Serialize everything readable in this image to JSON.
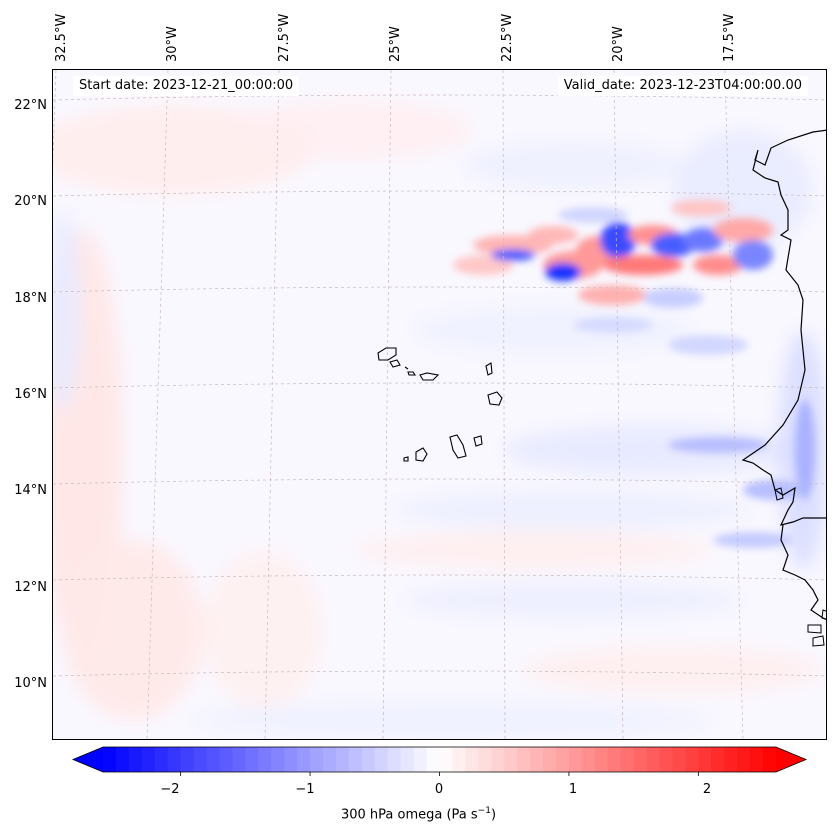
{
  "header": {
    "start_date": "Start date: 2023-12-21_00:00:00",
    "valid_date": "Valid_date: 2023-12-23T04:00:00.00"
  },
  "axes": {
    "lon_labels": [
      "32.5°W",
      "30°W",
      "27.5°W",
      "25°W",
      "22.5°W",
      "20°W",
      "17.5°W"
    ],
    "lat_labels": [
      "22°N",
      "20°N",
      "18°N",
      "16°N",
      "14°N",
      "12°N",
      "10°N"
    ]
  },
  "colorbar": {
    "label_main": "300 hPa omega (Pa s",
    "label_exp": "−1",
    "label_close": ")",
    "ticks": [
      "−2",
      "−1",
      "0",
      "1",
      "2"
    ],
    "min": -2.6,
    "max": 2.6,
    "tick_values": [
      -2,
      -1,
      0,
      1,
      2
    ]
  },
  "colors": {
    "negative": "#0000ff",
    "neutral": "#ffffff",
    "positive": "#ff0000",
    "grid": "#b0a0a0"
  },
  "map": {
    "region": "Cape Verde and West African coast",
    "islands": [
      "Santo Antão",
      "São Vicente",
      "São Nicolau",
      "Sal",
      "Boa Vista",
      "Maio",
      "Santiago",
      "Fogo",
      "Brava"
    ]
  }
}
